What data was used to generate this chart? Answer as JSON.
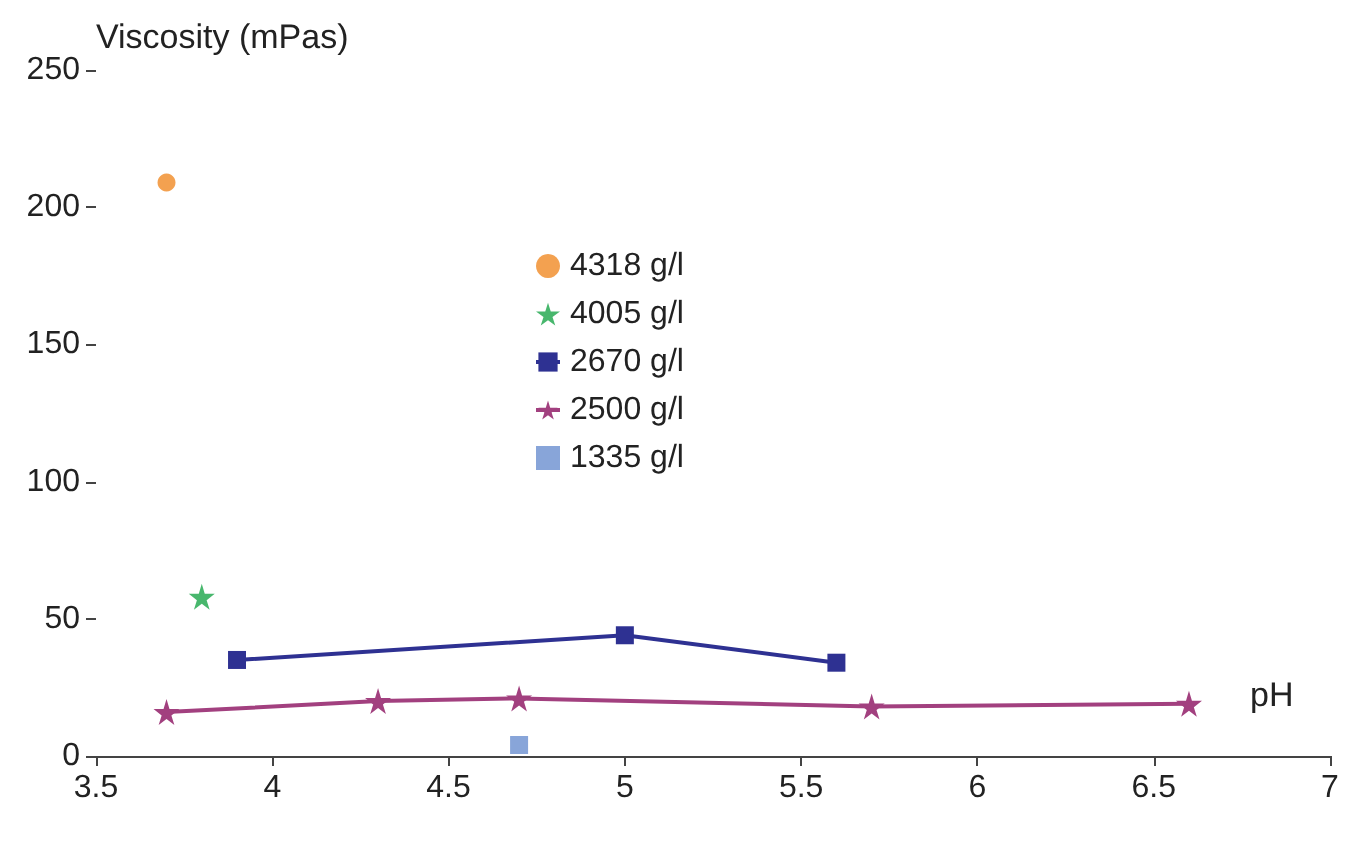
{
  "chart_data": {
    "type": "scatter",
    "ylabel": "Viscosity (mPas)",
    "xlabel": "pH",
    "xlim": [
      3.5,
      7
    ],
    "xticks": [
      3.5,
      4,
      4.5,
      5,
      5.5,
      6,
      6.5,
      7
    ],
    "ylim": [
      0,
      250
    ],
    "yticks": [
      0,
      50,
      100,
      150,
      200,
      250
    ],
    "grid": false,
    "legend": "top",
    "series": [
      {
        "name": "4318 g/l",
        "marker": "circle",
        "color": "#f08a24",
        "x": [
          3.7
        ],
        "values": [
          209
        ]
      },
      {
        "name": "4005 g/l",
        "marker": "star",
        "color": "#1aa548",
        "x": [
          3.8
        ],
        "values": [
          58
        ]
      },
      {
        "name": "2670 g/l",
        "type": "line",
        "marker": "square",
        "color": "#2e3192",
        "x": [
          3.9,
          5.0,
          5.6
        ],
        "values": [
          35,
          44,
          34
        ]
      },
      {
        "name": "2500 g/l",
        "type": "line",
        "marker": "star",
        "color": "#a2407f",
        "x": [
          3.7,
          4.3,
          4.7,
          5.7,
          6.6
        ],
        "values": [
          16,
          20,
          21,
          18,
          19
        ]
      },
      {
        "name": "1335 g/l",
        "marker": "square",
        "color": "#6a8fd0",
        "x": [
          4.7
        ],
        "values": [
          4
        ]
      }
    ]
  }
}
